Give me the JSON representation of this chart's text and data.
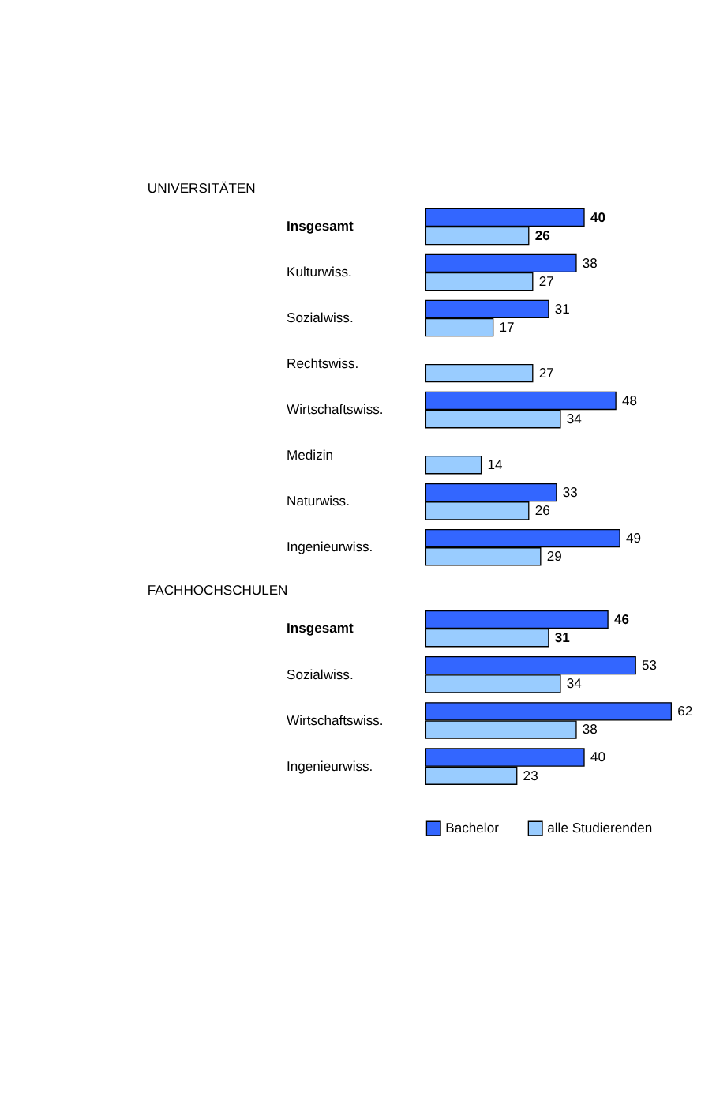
{
  "chart_data": [
    {
      "type": "bar",
      "orientation": "horizontal",
      "title": "UNIVERSITÄTEN",
      "categories": [
        "Insgesamt",
        "Kulturwiss.",
        "Sozialwiss.",
        "Rechtswiss.",
        "Wirtschaftswiss.",
        "Medizin",
        "Naturwiss.",
        "Ingenieurwiss."
      ],
      "series": [
        {
          "name": "Bachelor",
          "color": "#3366ff",
          "values": [
            40,
            38,
            31,
            null,
            48,
            null,
            33,
            49
          ]
        },
        {
          "name": "alle Studierenden",
          "color": "#99ccff",
          "values": [
            26,
            27,
            17,
            27,
            34,
            14,
            26,
            29
          ]
        }
      ],
      "data_labels": true,
      "legend": "bottom"
    },
    {
      "type": "bar",
      "orientation": "horizontal",
      "title": "FACHHOCHSCHULEN",
      "categories": [
        "Insgesamt",
        "Sozialwiss.",
        "Wirtschaftswiss.",
        "Ingenieurwiss."
      ],
      "series": [
        {
          "name": "Bachelor",
          "color": "#3366ff",
          "values": [
            46,
            53,
            62,
            40
          ]
        },
        {
          "name": "alle Studierenden",
          "color": "#99ccff",
          "values": [
            31,
            34,
            38,
            23
          ]
        }
      ],
      "data_labels": true,
      "legend": "bottom"
    }
  ]
}
